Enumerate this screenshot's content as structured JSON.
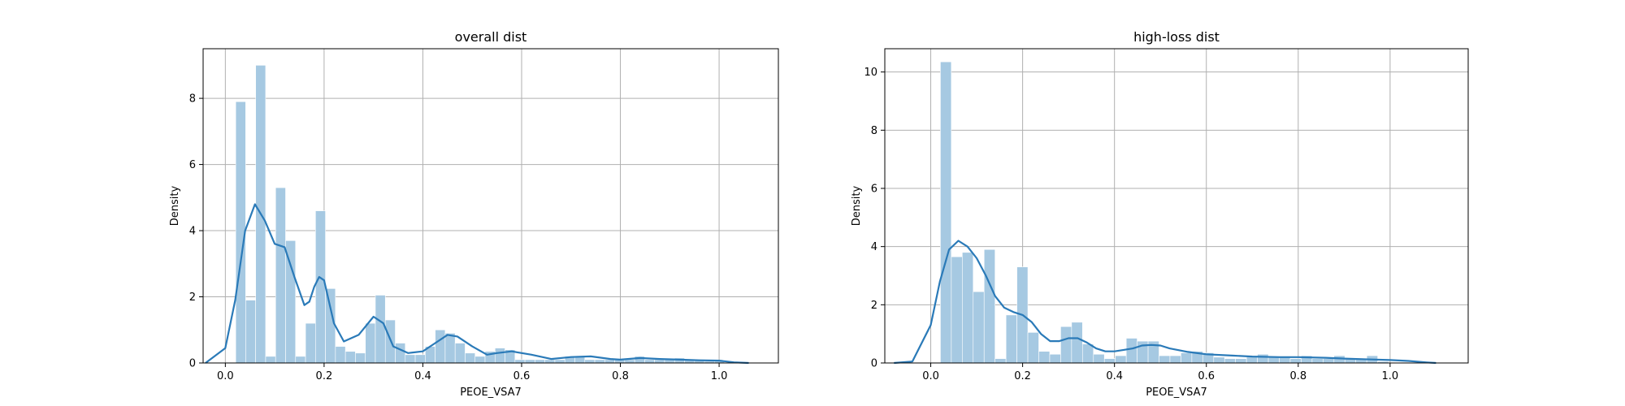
{
  "chart_data": [
    {
      "type": "histogram+kde",
      "title": "overall dist",
      "xlabel": "PEOE_VSA7",
      "ylabel": "Density",
      "xlim": [
        -0.045,
        1.12
      ],
      "ylim": [
        0,
        9.5
      ],
      "xticks": [
        0.0,
        0.2,
        0.4,
        0.6,
        0.8,
        1.0
      ],
      "xtick_labels": [
        "0.0",
        "0.2",
        "0.4",
        "0.6",
        "0.8",
        "1.0"
      ],
      "yticks": [
        0,
        2,
        4,
        6,
        8
      ],
      "ytick_labels": [
        "0",
        "2",
        "4",
        "6",
        "8"
      ],
      "grid": true,
      "bar_color": "#a6c9e2",
      "line_color": "#2a7ab8",
      "bin_edges": [
        0.021,
        0.0412,
        0.0614,
        0.0816,
        0.1018,
        0.122,
        0.1422,
        0.1624,
        0.1826,
        0.2028,
        0.223,
        0.2432,
        0.2634,
        0.2836,
        0.3038,
        0.324,
        0.3442,
        0.3644,
        0.3846,
        0.4048,
        0.425,
        0.4452,
        0.4654,
        0.4856,
        0.5058,
        0.526,
        0.5462,
        0.5664,
        0.5866,
        0.6068,
        0.627,
        0.6472,
        0.6674,
        0.6876,
        0.7078,
        0.728,
        0.7482,
        0.7684,
        0.7886,
        0.8088,
        0.829,
        0.8492,
        0.8694,
        0.8896,
        0.9098,
        0.93,
        0.9502,
        0.9704,
        0.9906,
        1.0108
      ],
      "bin_values": [
        7.9,
        1.9,
        9.0,
        0.2,
        5.3,
        3.7,
        0.2,
        1.2,
        4.6,
        2.25,
        0.5,
        0.35,
        0.3,
        1.2,
        2.05,
        1.3,
        0.6,
        0.25,
        0.25,
        0.5,
        1.0,
        0.9,
        0.6,
        0.3,
        0.2,
        0.35,
        0.45,
        0.4,
        0.1,
        0.1,
        0.1,
        0.1,
        0.1,
        0.2,
        0.2,
        0.1,
        0.1,
        0.1,
        0.1,
        0.1,
        0.2,
        0.1,
        0.1,
        0.1,
        0.15,
        0.1,
        0.1,
        0.05,
        0.05
      ],
      "kde": {
        "x": [
          -0.04,
          0.0,
          0.02,
          0.04,
          0.06,
          0.08,
          0.1,
          0.12,
          0.14,
          0.16,
          0.17,
          0.18,
          0.19,
          0.2,
          0.22,
          0.24,
          0.27,
          0.3,
          0.32,
          0.34,
          0.37,
          0.4,
          0.43,
          0.45,
          0.47,
          0.5,
          0.53,
          0.55,
          0.58,
          0.62,
          0.66,
          0.7,
          0.74,
          0.78,
          0.8,
          0.84,
          0.88,
          0.92,
          0.96,
          1.0,
          1.03,
          1.06
        ],
        "y": [
          0.0,
          0.45,
          1.9,
          4.0,
          4.8,
          4.3,
          3.6,
          3.5,
          2.6,
          1.75,
          1.85,
          2.3,
          2.6,
          2.5,
          1.2,
          0.65,
          0.85,
          1.4,
          1.2,
          0.5,
          0.3,
          0.35,
          0.65,
          0.85,
          0.8,
          0.5,
          0.25,
          0.3,
          0.35,
          0.25,
          0.12,
          0.18,
          0.2,
          0.12,
          0.1,
          0.15,
          0.12,
          0.1,
          0.08,
          0.07,
          0.02,
          0.0
        ]
      }
    },
    {
      "type": "histogram+kde",
      "title": "high-loss dist",
      "xlabel": "PEOE_VSA7",
      "ylabel": "Density",
      "xlim": [
        -0.1,
        1.17
      ],
      "ylim": [
        0,
        10.8
      ],
      "xticks": [
        0.0,
        0.2,
        0.4,
        0.6,
        0.8,
        1.0
      ],
      "xtick_labels": [
        "0.0",
        "0.2",
        "0.4",
        "0.6",
        "0.8",
        "1.0"
      ],
      "yticks": [
        0,
        2,
        4,
        6,
        8,
        10
      ],
      "ytick_labels": [
        "0",
        "2",
        "4",
        "6",
        "8",
        "10"
      ],
      "grid": true,
      "bar_color": "#a6c9e2",
      "line_color": "#2a7ab8",
      "bin_edges": [
        0.021,
        0.0448,
        0.0686,
        0.0924,
        0.1162,
        0.14,
        0.1638,
        0.1876,
        0.2114,
        0.2352,
        0.259,
        0.2828,
        0.3066,
        0.3304,
        0.3542,
        0.378,
        0.4018,
        0.4256,
        0.4494,
        0.4732,
        0.497,
        0.5208,
        0.5446,
        0.5684,
        0.5922,
        0.616,
        0.6398,
        0.6636,
        0.6874,
        0.7112,
        0.735,
        0.7588,
        0.7826,
        0.8064,
        0.8302,
        0.854,
        0.8778,
        0.9016,
        0.9254,
        0.9492,
        0.973,
        0.9968
      ],
      "bin_values": [
        10.35,
        3.65,
        3.8,
        2.45,
        3.9,
        0.15,
        1.65,
        3.3,
        1.05,
        0.4,
        0.3,
        1.25,
        1.4,
        0.65,
        0.3,
        0.15,
        0.25,
        0.85,
        0.75,
        0.75,
        0.25,
        0.25,
        0.35,
        0.4,
        0.35,
        0.2,
        0.15,
        0.15,
        0.2,
        0.3,
        0.2,
        0.2,
        0.15,
        0.25,
        0.15,
        0.15,
        0.25,
        0.15,
        0.15,
        0.25,
        0.05
      ],
      "kde": {
        "x": [
          -0.08,
          -0.04,
          0.0,
          0.02,
          0.04,
          0.06,
          0.08,
          0.1,
          0.12,
          0.14,
          0.16,
          0.18,
          0.2,
          0.22,
          0.24,
          0.26,
          0.28,
          0.3,
          0.32,
          0.34,
          0.36,
          0.38,
          0.4,
          0.42,
          0.44,
          0.46,
          0.48,
          0.5,
          0.52,
          0.56,
          0.6,
          0.66,
          0.7,
          0.76,
          0.8,
          0.86,
          0.9,
          0.96,
          1.0,
          1.04,
          1.08,
          1.1
        ],
        "y": [
          0.0,
          0.05,
          1.3,
          2.8,
          3.9,
          4.2,
          4.0,
          3.6,
          3.0,
          2.3,
          1.9,
          1.75,
          1.65,
          1.4,
          1.0,
          0.75,
          0.75,
          0.85,
          0.85,
          0.7,
          0.5,
          0.4,
          0.4,
          0.45,
          0.5,
          0.6,
          0.62,
          0.6,
          0.5,
          0.38,
          0.3,
          0.25,
          0.22,
          0.2,
          0.2,
          0.18,
          0.15,
          0.12,
          0.1,
          0.07,
          0.02,
          0.0
        ]
      }
    }
  ]
}
